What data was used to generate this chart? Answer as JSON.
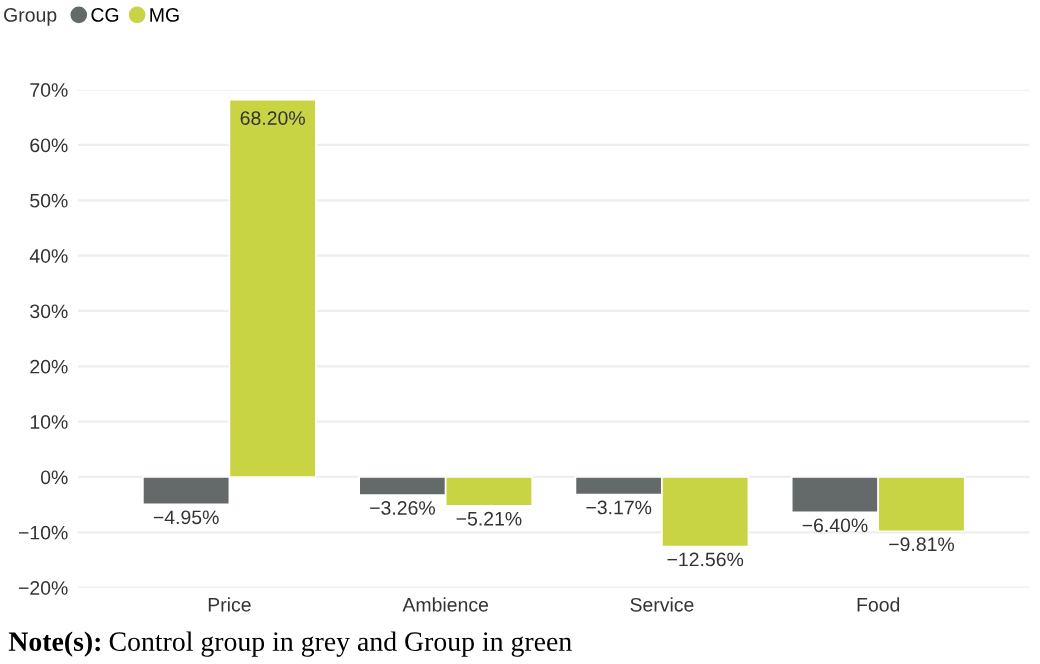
{
  "chart_data": {
    "type": "bar",
    "categories": [
      "Price",
      "Ambience",
      "Service",
      "Food"
    ],
    "series": [
      {
        "name": "CG",
        "color": "#646a6a",
        "values": [
          -4.95,
          -3.26,
          -3.17,
          -6.4
        ],
        "value_labels": [
          "−4.95%",
          "−3.26%",
          "−3.17%",
          "−6.40%"
        ]
      },
      {
        "name": "MG",
        "color": "#c8d444",
        "values": [
          68.2,
          -5.21,
          -12.56,
          -9.81
        ],
        "value_labels": [
          "68.20%",
          "−5.21%",
          "−12.56%",
          "−9.81%"
        ]
      }
    ],
    "legend_title": "Group",
    "legend": "top left",
    "ylim": [
      -20,
      70
    ],
    "yticks": [
      {
        "value": -20,
        "label": "−20%"
      },
      {
        "value": -10,
        "label": "−10%"
      },
      {
        "value": 0,
        "label": "0%"
      },
      {
        "value": 10,
        "label": "10%"
      },
      {
        "value": 20,
        "label": "20%"
      },
      {
        "value": 30,
        "label": "30%"
      },
      {
        "value": 40,
        "label": "40%"
      },
      {
        "value": 50,
        "label": "50%"
      },
      {
        "value": 60,
        "label": "60%"
      },
      {
        "value": 70,
        "label": "70%"
      }
    ],
    "grid": "y",
    "annotations": [
      "Note(s):",
      "Control group in grey and Group in green"
    ]
  }
}
